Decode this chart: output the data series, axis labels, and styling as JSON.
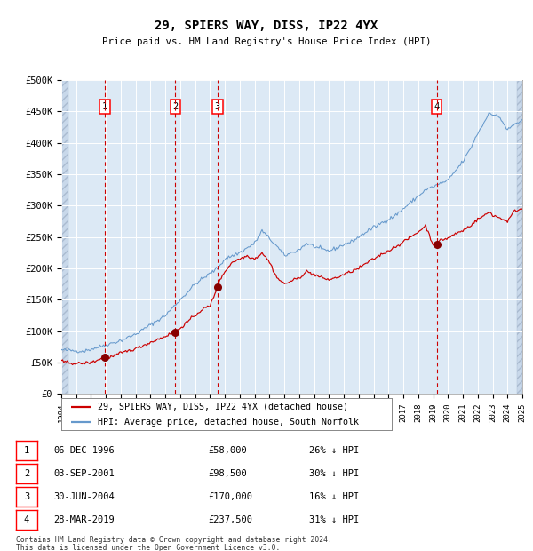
{
  "title": "29, SPIERS WAY, DISS, IP22 4YX",
  "subtitle": "Price paid vs. HM Land Registry's House Price Index (HPI)",
  "plot_bg_color": "#dce9f5",
  "grid_color": "#ffffff",
  "red_line_color": "#cc0000",
  "blue_line_color": "#6699cc",
  "sale_marker_color": "#880000",
  "dashed_line_color": "#cc0000",
  "ylim": [
    0,
    500000
  ],
  "yticks": [
    0,
    50000,
    100000,
    150000,
    200000,
    250000,
    300000,
    350000,
    400000,
    450000,
    500000
  ],
  "ytick_labels": [
    "£0",
    "£50K",
    "£100K",
    "£150K",
    "£200K",
    "£250K",
    "£300K",
    "£350K",
    "£400K",
    "£450K",
    "£500K"
  ],
  "xmin_year": 1994,
  "xmax_year": 2025,
  "xtick_years": [
    1994,
    1995,
    1996,
    1997,
    1998,
    1999,
    2000,
    2001,
    2002,
    2003,
    2004,
    2005,
    2006,
    2007,
    2008,
    2009,
    2010,
    2011,
    2012,
    2013,
    2014,
    2015,
    2016,
    2017,
    2018,
    2019,
    2020,
    2021,
    2022,
    2023,
    2024,
    2025
  ],
  "sales": [
    {
      "num": 1,
      "date_x": 1996.92,
      "price": 58000,
      "label": "06-DEC-1996",
      "price_str": "£58,000",
      "hpi_diff": "26% ↓ HPI"
    },
    {
      "num": 2,
      "date_x": 2001.67,
      "price": 98500,
      "label": "03-SEP-2001",
      "price_str": "£98,500",
      "hpi_diff": "30% ↓ HPI"
    },
    {
      "num": 3,
      "date_x": 2004.5,
      "price": 170000,
      "label": "30-JUN-2004",
      "price_str": "£170,000",
      "hpi_diff": "16% ↓ HPI"
    },
    {
      "num": 4,
      "date_x": 2019.25,
      "price": 237500,
      "label": "28-MAR-2019",
      "price_str": "£237,500",
      "hpi_diff": "31% ↓ HPI"
    }
  ],
  "legend_entries": [
    "29, SPIERS WAY, DISS, IP22 4YX (detached house)",
    "HPI: Average price, detached house, South Norfolk"
  ],
  "footnote1": "Contains HM Land Registry data © Crown copyright and database right 2024.",
  "footnote2": "This data is licensed under the Open Government Licence v3.0.",
  "hpi_waypoints_x": [
    1994.0,
    1995.5,
    1997.0,
    1998.0,
    1999.0,
    2000.0,
    2001.0,
    2002.0,
    2003.0,
    2004.5,
    2005.0,
    2006.0,
    2007.0,
    2007.5,
    2008.5,
    2009.0,
    2009.5,
    2010.0,
    2010.5,
    2011.0,
    2011.5,
    2012.0,
    2012.5,
    2013.0,
    2013.5,
    2014.0,
    2014.5,
    2015.0,
    2015.5,
    2016.0,
    2016.5,
    2017.0,
    2017.5,
    2018.0,
    2018.5,
    2019.0,
    2019.5,
    2020.0,
    2020.5,
    2021.0,
    2021.5,
    2022.0,
    2022.5,
    2022.8,
    2023.0,
    2023.5,
    2024.0,
    2024.5,
    2025.0
  ],
  "hpi_waypoints_y": [
    70000,
    68000,
    78000,
    85000,
    95000,
    110000,
    125000,
    150000,
    175000,
    200000,
    215000,
    225000,
    240000,
    260000,
    235000,
    220000,
    225000,
    230000,
    240000,
    235000,
    230000,
    228000,
    232000,
    238000,
    242000,
    250000,
    258000,
    265000,
    272000,
    278000,
    285000,
    295000,
    305000,
    315000,
    325000,
    330000,
    335000,
    340000,
    355000,
    370000,
    390000,
    415000,
    435000,
    450000,
    445000,
    440000,
    420000,
    430000,
    435000
  ],
  "red_waypoints_x": [
    1994.0,
    1995.0,
    1996.0,
    1996.92,
    1997.0,
    1997.5,
    1998.0,
    1999.0,
    2000.0,
    2001.0,
    2001.67,
    2002.0,
    2002.5,
    2003.0,
    2003.5,
    2004.0,
    2004.5,
    2004.75,
    2005.0,
    2005.5,
    2006.0,
    2006.5,
    2007.0,
    2007.5,
    2008.0,
    2008.5,
    2009.0,
    2009.5,
    2010.0,
    2010.5,
    2011.0,
    2011.5,
    2012.0,
    2012.5,
    2013.0,
    2013.5,
    2014.0,
    2014.5,
    2015.0,
    2015.5,
    2016.0,
    2016.5,
    2017.0,
    2017.5,
    2018.0,
    2018.5,
    2019.0,
    2019.25,
    2019.5,
    2020.0,
    2020.5,
    2021.0,
    2021.5,
    2022.0,
    2022.5,
    2022.8,
    2023.0,
    2023.5,
    2024.0,
    2024.5,
    2025.0
  ],
  "red_waypoints_y": [
    52000,
    48000,
    50000,
    58000,
    57000,
    60000,
    65000,
    72000,
    82000,
    92000,
    98500,
    105000,
    115000,
    125000,
    135000,
    140000,
    170000,
    185000,
    195000,
    210000,
    215000,
    220000,
    215000,
    225000,
    210000,
    185000,
    175000,
    180000,
    185000,
    195000,
    190000,
    185000,
    182000,
    185000,
    190000,
    195000,
    200000,
    208000,
    215000,
    222000,
    228000,
    235000,
    242000,
    250000,
    258000,
    268000,
    237500,
    237500,
    245000,
    248000,
    255000,
    260000,
    268000,
    278000,
    285000,
    290000,
    285000,
    280000,
    275000,
    292000,
    295000
  ]
}
